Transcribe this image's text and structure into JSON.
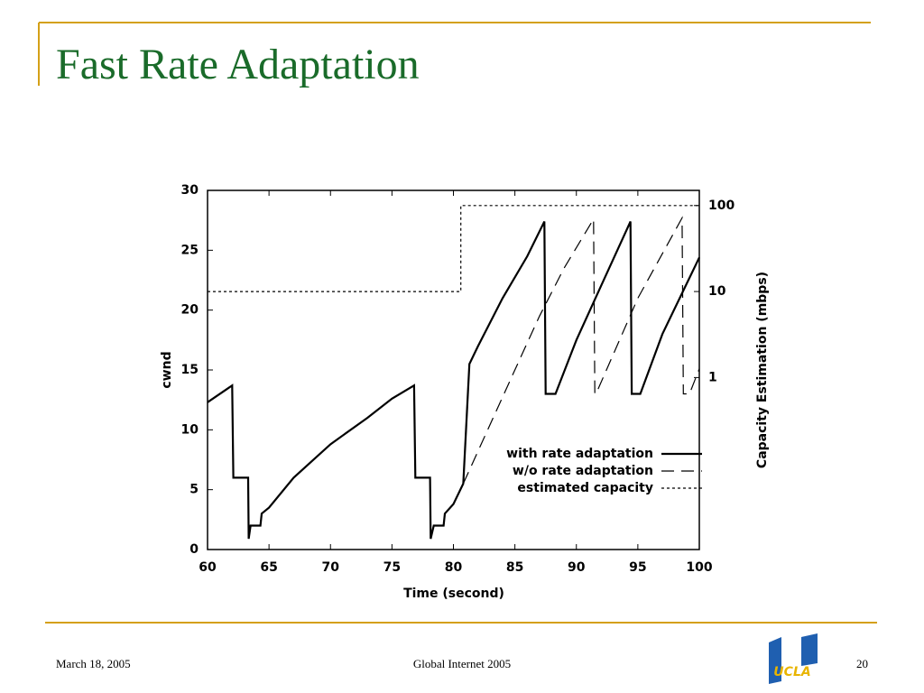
{
  "slide": {
    "title": "Fast Rate Adaptation",
    "footer_left": "March 18, 2005",
    "footer_center": "Global Internet 2005",
    "page_number": "20",
    "logo": "UCLA"
  },
  "chart_data": {
    "type": "line",
    "xlabel": "Time (second)",
    "ylabel": "cwnd",
    "y2label": "Capacity Estimation (mbps)",
    "xlim": [
      60,
      100
    ],
    "xticks": [
      60,
      65,
      70,
      75,
      80,
      85,
      90,
      95,
      100
    ],
    "ylim": [
      0,
      30
    ],
    "yticks": [
      0,
      5,
      10,
      15,
      20,
      25,
      30
    ],
    "y2lim": [
      0.01,
      150
    ],
    "y2ticks": [
      1,
      10,
      100
    ],
    "y2scale": "log",
    "legend": "lower right",
    "series": [
      {
        "name": "with rate adaptation",
        "color": "#000000",
        "dash": "solid",
        "x": [
          60,
          62,
          62.1,
          63.3,
          63.35,
          63.5,
          64.3,
          64.4,
          65,
          67,
          70,
          73,
          75,
          76.8,
          76.9,
          78.1,
          78.15,
          78.4,
          79.2,
          79.3,
          80,
          80.8,
          81.3,
          82,
          84,
          86,
          87.4,
          87.5,
          88.3,
          90,
          92,
          94.4,
          94.5,
          95.2,
          97,
          100
        ],
        "values": [
          12.3,
          13.7,
          6,
          6,
          0.9,
          2,
          2,
          3,
          3.5,
          6,
          8.8,
          11,
          12.6,
          13.7,
          6,
          6,
          0.9,
          2,
          2,
          3,
          3.8,
          5.5,
          15.5,
          17,
          21,
          24.5,
          27.4,
          13,
          13,
          17.5,
          22,
          27.4,
          13,
          13,
          18,
          24.4
        ]
      },
      {
        "name": "w/o rate adaptation",
        "color": "#000000",
        "dash": "dashed",
        "x": [
          80.8,
          85,
          87,
          89,
          91.4,
          91.5,
          91.6,
          95,
          98.6,
          98.7,
          99.2,
          100
        ],
        "values": [
          5.5,
          15,
          19.5,
          23.5,
          27.6,
          13,
          13,
          21,
          27.7,
          13,
          13,
          15.1
        ]
      },
      {
        "name": "estimated capacity",
        "color": "#000000",
        "dash": "dotted",
        "axis": "y2",
        "x": [
          60,
          80.6,
          80.6,
          100
        ],
        "values": [
          10,
          10,
          100,
          100
        ]
      }
    ]
  }
}
